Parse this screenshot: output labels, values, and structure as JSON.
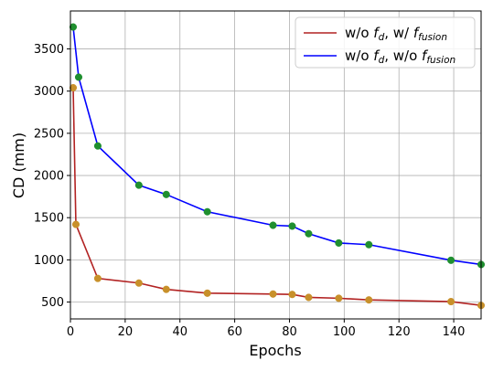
{
  "chart_data": {
    "type": "line",
    "xlabel": "Epochs",
    "ylabel": "CD (mm)",
    "xlim": [
      0,
      150
    ],
    "ylim": [
      300,
      3950
    ],
    "xticks": [
      0,
      20,
      40,
      60,
      80,
      100,
      120,
      140
    ],
    "yticks": [
      500,
      1000,
      1500,
      2000,
      2500,
      3000,
      3500
    ],
    "grid": true,
    "legend_position": "top-right",
    "series": [
      {
        "legend_main": "w/o ",
        "legend_f1": "f",
        "legend_sub1": "d",
        "legend_mid": ", w/ ",
        "legend_f2": "f",
        "legend_sub2": "fusion",
        "line_color": "#b22222",
        "marker_color": "#c8902a",
        "x": [
          1,
          2,
          10,
          25,
          35,
          50,
          74,
          81,
          87,
          98,
          109,
          139,
          150
        ],
        "y": [
          3040,
          1420,
          780,
          725,
          650,
          605,
          595,
          590,
          555,
          545,
          525,
          505,
          460
        ]
      },
      {
        "legend_main": "w/o ",
        "legend_f1": "f",
        "legend_sub1": "d",
        "legend_mid": ", w/o ",
        "legend_f2": "f",
        "legend_sub2": "fusion",
        "line_color": "#0000ff",
        "marker_color": "#1f8f2f",
        "x": [
          1,
          3,
          10,
          25,
          35,
          50,
          74,
          81,
          87,
          98,
          109,
          139,
          150
        ],
        "y": [
          3760,
          3165,
          2350,
          1885,
          1775,
          1570,
          1410,
          1400,
          1310,
          1200,
          1180,
          995,
          945
        ]
      }
    ]
  }
}
